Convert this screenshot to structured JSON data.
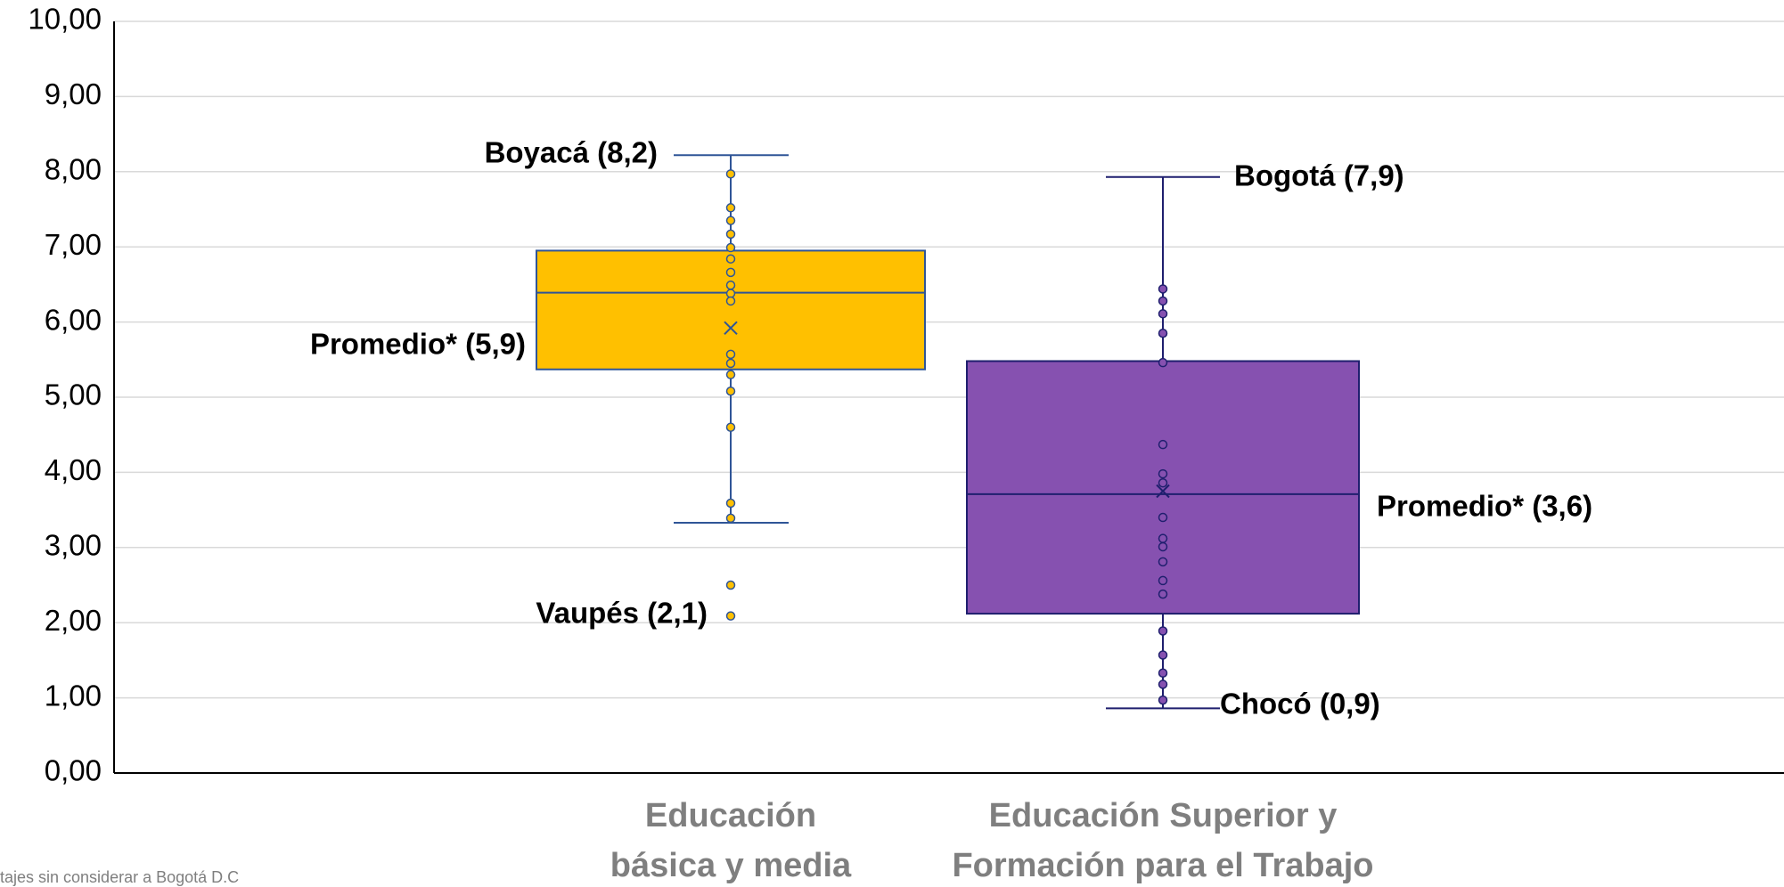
{
  "chart_data": {
    "type": "box",
    "categories": [
      "Educación básica y media",
      "Educación Superior y Formación para el Trabajo"
    ],
    "ylim": [
      0,
      10
    ],
    "yticks": [
      {
        "value": 0,
        "label": "0,00"
      },
      {
        "value": 1,
        "label": "1,00"
      },
      {
        "value": 2,
        "label": "2,00"
      },
      {
        "value": 3,
        "label": "3,00"
      },
      {
        "value": 4,
        "label": "4,00"
      },
      {
        "value": 5,
        "label": "5,00"
      },
      {
        "value": 6,
        "label": "6,00"
      },
      {
        "value": 7,
        "label": "7,00"
      },
      {
        "value": 8,
        "label": "8,00"
      },
      {
        "value": 9,
        "label": "9,00"
      },
      {
        "value": 10,
        "label": "10,00"
      }
    ],
    "grid": true,
    "series": [
      {
        "color": "#ffc000",
        "stroke": "#2f5597",
        "whisker_low": 3.33,
        "q1": 5.37,
        "median": 6.39,
        "q3": 6.95,
        "whisker_high": 8.22,
        "mean": 5.92,
        "points": [
          7.97,
          7.52,
          7.35,
          7.17,
          6.99,
          6.84,
          6.66,
          6.49,
          6.38,
          6.28,
          5.57,
          5.45,
          5.3,
          5.08,
          4.6,
          3.59,
          3.39,
          2.5,
          2.09
        ]
      },
      {
        "color": "#8651b0",
        "stroke": "#1f1f6e",
        "whisker_low": 0.86,
        "q1": 2.12,
        "median": 3.71,
        "q3": 5.48,
        "whisker_high": 7.93,
        "mean": 3.75,
        "points": [
          6.44,
          6.28,
          6.11,
          5.85,
          5.46,
          4.37,
          3.98,
          3.86,
          3.4,
          3.12,
          3.01,
          2.81,
          2.56,
          2.38,
          1.89,
          1.57,
          1.33,
          1.18,
          0.97
        ]
      }
    ],
    "annotations": [
      "Boyacá (8,2)",
      "Promedio* (5,9)",
      "Vaupés (2,1)",
      "Bogotá (7,9)",
      "Promedio* (3,6)",
      "Chocó (0,9)"
    ],
    "footnote": "tajes sin considerar a Bogotá D.C"
  }
}
